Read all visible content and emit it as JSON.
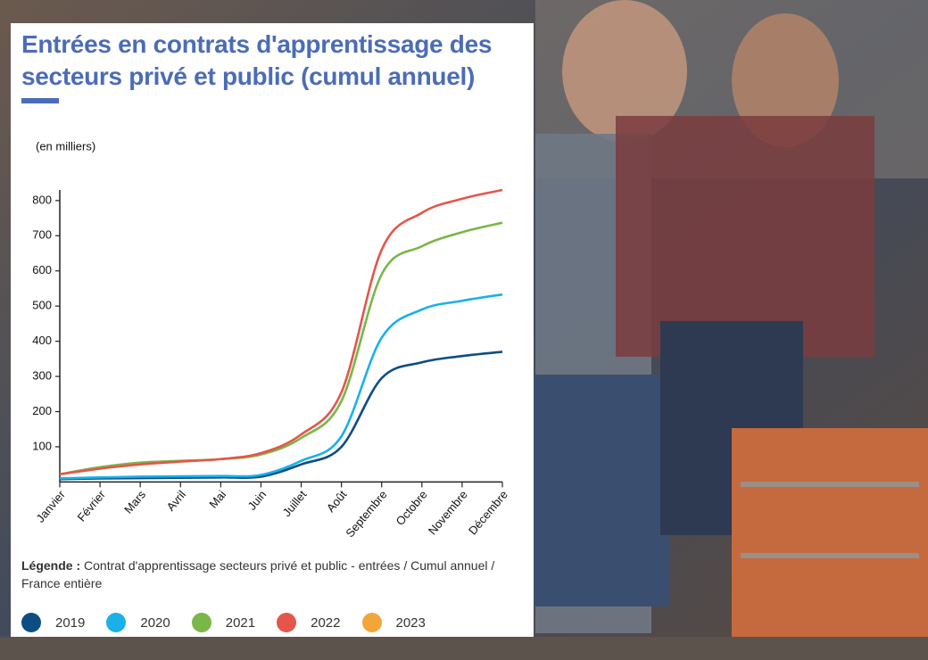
{
  "chart_data": {
    "type": "line",
    "title": "Entrées en contrats d'apprentissage des secteurs privé et public (cumul annuel)",
    "ylabel": "(en milliers)",
    "legend_label": "Légende :",
    "legend_text": "Contrat d'apprentissage secteurs privé et public - entrées / Cumul annuel / France entière",
    "categories": [
      "Janvier",
      "Février",
      "Mars",
      "Avril",
      "Mai",
      "Juin",
      "Juillet",
      "Août",
      "Septembre",
      "Octobre",
      "Novembre",
      "Décembre"
    ],
    "ylim": [
      0,
      830
    ],
    "yticks": [
      100,
      200,
      300,
      400,
      500,
      600,
      700,
      800
    ],
    "series": [
      {
        "name": "2019",
        "color": "#0d4d84",
        "values": [
          8,
          10,
          11,
          12,
          13,
          15,
          50,
          100,
          295,
          340,
          358,
          370
        ]
      },
      {
        "name": "2020",
        "color": "#1ab0e8",
        "values": [
          10,
          13,
          15,
          16,
          17,
          20,
          60,
          130,
          410,
          490,
          515,
          533
        ]
      },
      {
        "name": "2021",
        "color": "#7ab648",
        "values": [
          22,
          42,
          55,
          60,
          65,
          78,
          125,
          230,
          590,
          670,
          710,
          737
        ]
      },
      {
        "name": "2022",
        "color": "#e4564a",
        "values": [
          22,
          38,
          50,
          58,
          65,
          82,
          135,
          255,
          660,
          765,
          805,
          830
        ]
      },
      {
        "name": "2023",
        "color": "#f3a53b",
        "values": [
          null,
          null,
          null,
          null,
          null,
          null,
          null,
          null,
          null,
          null,
          null,
          null
        ]
      }
    ]
  }
}
